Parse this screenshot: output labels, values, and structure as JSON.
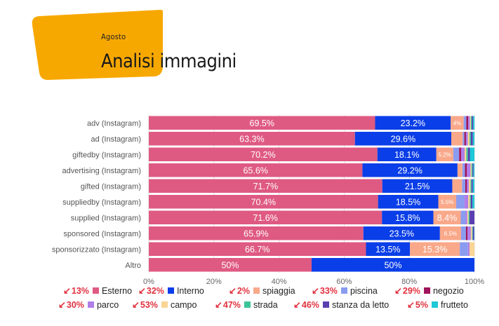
{
  "header": {
    "subtitle": "Agosto",
    "title": "Analisi immagini"
  },
  "colors": {
    "banner": "#f7a800",
    "axis_text": "#666666",
    "grid": "#dddddd",
    "negative": "#e0313f"
  },
  "chart_data": {
    "type": "bar",
    "orientation": "horizontal",
    "stacked": "percent",
    "categories": [
      "adv (Instagram)",
      "ad (Instagram)",
      "giftedby (Instagram)",
      "advertising (Instagram)",
      "gifted (Instagram)",
      "suppliedby (Instagram)",
      "supplied (Instagram)",
      "sponsored (Instagram)",
      "sponsorizzato (Instagram)",
      "Altro"
    ],
    "xlim": [
      0,
      100
    ],
    "x_ticks": [
      "0%",
      "20%",
      "40%",
      "60%",
      "80%",
      "100%"
    ],
    "grid": true,
    "legend_position": "bottom",
    "series": [
      {
        "name": "Esterno",
        "color": "#df5a82",
        "change": "13%",
        "values": [
          69.5,
          63.3,
          70.2,
          65.6,
          71.7,
          70.4,
          71.6,
          65.9,
          66.7,
          50
        ],
        "labels": [
          "69.5%",
          "63.3%",
          "70.2%",
          "65.6%",
          "71.7%",
          "70.4%",
          "71.6%",
          "65.9%",
          "66.7%",
          "50%"
        ]
      },
      {
        "name": "Interno",
        "color": "#0a3ee8",
        "change": "32%",
        "values": [
          23.2,
          29.6,
          18.1,
          29.2,
          21.5,
          18.5,
          15.8,
          23.5,
          13.5,
          50
        ],
        "labels": [
          "23.2%",
          "29.6%",
          "18.1%",
          "29.2%",
          "21.5%",
          "18.5%",
          "15.8%",
          "23.5%",
          "13.5%",
          "50%"
        ]
      },
      {
        "name": "spiaggia",
        "color": "#f9a88a",
        "change": "2%",
        "values": [
          4,
          3.5,
          5.2,
          1.5,
          3,
          5.5,
          8.4,
          6.5,
          15.3,
          0
        ],
        "labels": [
          "4%",
          "",
          "5.2%",
          "",
          "",
          "5.5%",
          "8.4%",
          "6.5%",
          "15.3%",
          ""
        ]
      },
      {
        "name": "piscina",
        "color": "#8a9cf0",
        "change": "33%",
        "values": [
          0.8,
          0.5,
          1.8,
          0.8,
          1,
          2.5,
          1.5,
          1.5,
          2.5,
          0
        ],
        "labels": [
          "",
          "",
          "",
          "",
          "",
          "",
          "",
          "",
          "",
          ""
        ]
      },
      {
        "name": "negozio",
        "color": "#a0145a",
        "change": "29%",
        "values": [
          0.6,
          0.5,
          0.6,
          0.6,
          0.5,
          0,
          0,
          0.5,
          0,
          0
        ],
        "labels": [
          "",
          "",
          "",
          "",
          "",
          "",
          "",
          "",
          "",
          ""
        ]
      },
      {
        "name": "parco",
        "color": "#b07ee8",
        "change": "30%",
        "values": [
          0.5,
          0.6,
          1.1,
          1.1,
          0.6,
          1.2,
          0.5,
          1,
          0.5,
          0
        ],
        "labels": [
          "",
          "",
          "",
          "",
          "",
          "",
          "",
          "",
          "",
          ""
        ]
      },
      {
        "name": "campo",
        "color": "#fad493",
        "change": "53%",
        "values": [
          0.3,
          0.5,
          0.5,
          0.3,
          0.5,
          0.5,
          0.4,
          0.4,
          1.5,
          0
        ],
        "labels": [
          "",
          "",
          "",
          "",
          "",
          "",
          "",
          "",
          "",
          ""
        ]
      },
      {
        "name": "strada",
        "color": "#3cc49a",
        "change": "47%",
        "values": [
          0.3,
          0.4,
          0.5,
          0.3,
          0.3,
          0.3,
          0.3,
          0.2,
          0,
          0
        ],
        "labels": [
          "",
          "",
          "",
          "",
          "",
          "",
          "",
          "",
          "",
          ""
        ]
      },
      {
        "name": "stanza da letto",
        "color": "#5a3fb0",
        "change": "46%",
        "values": [
          0.4,
          0.6,
          0.6,
          0.3,
          0.4,
          0.5,
          1.5,
          0.4,
          0,
          0
        ],
        "labels": [
          "",
          "",
          "",
          "",
          "",
          "",
          "",
          "",
          "",
          ""
        ]
      },
      {
        "name": "frutteto",
        "color": "#1ec8d6",
        "change": "5%",
        "values": [
          0.4,
          0.5,
          1.4,
          0.3,
          0.5,
          0.6,
          0,
          0.1,
          0,
          0
        ],
        "labels": [
          "",
          "",
          "",
          "",
          "",
          "",
          "",
          "",
          "",
          ""
        ]
      }
    ]
  }
}
